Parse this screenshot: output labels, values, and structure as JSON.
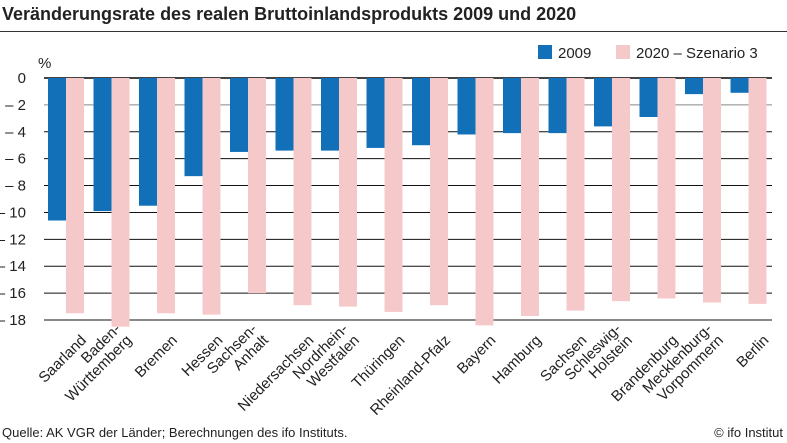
{
  "chart_data": {
    "type": "bar",
    "title": "Veränderungsrate des realen Bruttoinlandsprodukts 2009 und 2020",
    "ylabel": "%",
    "ylim": [
      -18,
      0
    ],
    "yticks": [
      0,
      -2,
      -4,
      -6,
      -8,
      -10,
      -12,
      -14,
      -16,
      -18
    ],
    "grid": true,
    "legend_position": "top-right",
    "categories": [
      "Saarland",
      "Baden-\nWürttemberg",
      "Bremen",
      "Hessen",
      "Sachsen-\nAnhalt",
      "Niedersachsen",
      "Nordrhein-\nWestfalen",
      "Thüringen",
      "Rheinland-Pfalz",
      "Bayern",
      "Hamburg",
      "Sachsen",
      "Schleswig-\nHolstein",
      "Brandenburg",
      "Mecklenburg-\nVorpommern",
      "Berlin"
    ],
    "series": [
      {
        "name": "2009",
        "color": "#1170b8",
        "values": [
          -10.6,
          -9.9,
          -9.5,
          -7.3,
          -5.5,
          -5.4,
          -5.4,
          -5.2,
          -5.0,
          -4.2,
          -4.1,
          -4.1,
          -3.6,
          -2.9,
          -1.2,
          -1.1
        ]
      },
      {
        "name": "2020 – Szenario 3",
        "color": "#f5c9c9",
        "values": [
          -17.5,
          -18.5,
          -17.5,
          -17.6,
          -16.0,
          -16.9,
          -17.0,
          -17.4,
          -16.9,
          -18.4,
          -17.7,
          -17.3,
          -16.6,
          -16.4,
          -16.7,
          -16.8
        ]
      }
    ]
  },
  "footer": {
    "source": "Quelle: AK VGR der Länder; Berechnungen des ifo Instituts.",
    "credit": "© ifo Institut"
  }
}
